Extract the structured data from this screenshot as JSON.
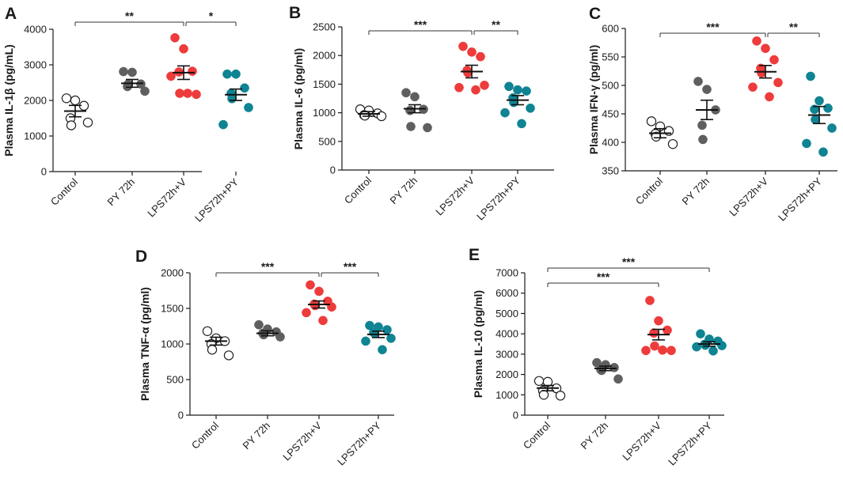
{
  "colors": {
    "control": "#ffffff",
    "py72h": "#5f5f5f",
    "lps_v": "#ee3b3b",
    "lps_py": "#0f8493",
    "axis": "#1a1a1a"
  },
  "chart_data": [
    {
      "panel": "A",
      "type": "scatter",
      "ylabel": "Plasma IL-1β (pg/mL)",
      "categories": [
        "Control",
        "PY 72h",
        "LPS72h+V",
        "LPS72h+PY"
      ],
      "ylim": [
        0,
        4000
      ],
      "yticks": [
        0,
        1000,
        2000,
        3000,
        4000
      ],
      "means": [
        1700,
        2480,
        2780,
        2160
      ],
      "sems": [
        160,
        110,
        190,
        160
      ],
      "points": [
        [
          2060,
          2000,
          1850,
          1500,
          1300,
          1380
        ],
        [
          2810,
          2790,
          2460,
          2390,
          2460,
          2260
        ],
        [
          3760,
          3450,
          2820,
          2800,
          2200,
          2170,
          2680,
          2200
        ],
        [
          2740,
          2740,
          2350,
          2200,
          2050,
          1800,
          1320
        ]
      ],
      "brackets": [
        {
          "from": 0,
          "to": 2,
          "label": "**"
        },
        {
          "from": 2,
          "to": 3,
          "label": "*"
        }
      ]
    },
    {
      "panel": "B",
      "type": "scatter",
      "ylabel": "Plasma IL-6 (pg/ml)",
      "categories": [
        "Control",
        "PY 72h",
        "LPS72h+V",
        "LPS72h+PY"
      ],
      "ylim": [
        0,
        2500
      ],
      "yticks": [
        0,
        500,
        1000,
        1500,
        2000,
        2500
      ],
      "means": [
        980,
        1070,
        1720,
        1220
      ],
      "sems": [
        40,
        70,
        110,
        80
      ],
      "points": [
        [
          1060,
          1040,
          990,
          960,
          950,
          940
        ],
        [
          1350,
          1280,
          1060,
          1040,
          760,
          740
        ],
        [
          2160,
          2060,
          1980,
          1740,
          1700,
          1480,
          1440,
          1400
        ],
        [
          1460,
          1400,
          1380,
          1260,
          1180,
          1080,
          1000,
          810
        ]
      ],
      "brackets": [
        {
          "from": 0,
          "to": 2,
          "label": "***"
        },
        {
          "from": 2,
          "to": 3,
          "label": "**"
        }
      ]
    },
    {
      "panel": "C",
      "type": "scatter",
      "ylabel": "Plasma IFN-γ (pg/ml)",
      "categories": [
        "Control",
        "PY 72h",
        "LPS72h+V",
        "LPS72h+PY"
      ],
      "ylim": [
        350,
        600
      ],
      "yticks": [
        350,
        400,
        450,
        500,
        550,
        600
      ],
      "means": [
        416,
        457,
        524,
        448
      ],
      "sems": [
        8,
        17,
        11,
        15
      ],
      "points": [
        [
          437,
          428,
          420,
          415,
          410,
          397
        ],
        [
          507,
          493,
          457,
          430,
          405
        ],
        [
          578,
          565,
          545,
          530,
          522,
          505,
          497,
          480
        ],
        [
          516,
          473,
          460,
          458,
          440,
          425,
          398,
          383
        ]
      ],
      "brackets": [
        {
          "from": 0,
          "to": 2,
          "label": "***"
        },
        {
          "from": 2,
          "to": 3,
          "label": "**"
        }
      ]
    },
    {
      "panel": "D",
      "type": "scatter",
      "ylabel": "Plasma TNF-α (pg/ml)",
      "categories": [
        "Control",
        "PY 72h",
        "LPS72h+V",
        "LPS72h+PY"
      ],
      "ylim": [
        0,
        2000
      ],
      "yticks": [
        0,
        500,
        1000,
        1500,
        2000
      ],
      "means": [
        1040,
        1150,
        1555,
        1135
      ],
      "sems": [
        55,
        35,
        50,
        45
      ],
      "points": [
        [
          1180,
          1080,
          1040,
          1000,
          920,
          840
        ],
        [
          1270,
          1210,
          1170,
          1150,
          1130,
          1100
        ],
        [
          1830,
          1740,
          1600,
          1560,
          1540,
          1520,
          1440,
          1330
        ],
        [
          1260,
          1240,
          1200,
          1160,
          1150,
          1080,
          1040,
          920
        ]
      ],
      "brackets": [
        {
          "from": 0,
          "to": 2,
          "label": "***"
        },
        {
          "from": 2,
          "to": 3,
          "label": "***"
        }
      ]
    },
    {
      "panel": "E",
      "type": "scatter",
      "ylabel": "Plasma IL-10 (pg/ml)",
      "categories": [
        "Control",
        "PY 72h",
        "LPS72h+V",
        "LPS72h+PY"
      ],
      "ylim": [
        0,
        7000
      ],
      "yticks": [
        0,
        1000,
        2000,
        3000,
        4000,
        5000,
        6000,
        7000
      ],
      "means": [
        1330,
        2300,
        3960,
        3500
      ],
      "sems": [
        130,
        110,
        260,
        110
      ],
      "points": [
        [
          1680,
          1640,
          1320,
          1200,
          1000,
          960
        ],
        [
          2580,
          2480,
          2340,
          2240,
          2200,
          1780
        ],
        [
          5640,
          4640,
          4180,
          4040,
          3400,
          3180,
          3180,
          3200
        ],
        [
          4000,
          3740,
          3640,
          3480,
          3440,
          3420,
          3360,
          3160
        ]
      ],
      "brackets": [
        {
          "from": 0,
          "to": 2,
          "label": "***"
        },
        {
          "from": 0,
          "to": 3,
          "label": "***"
        }
      ]
    }
  ]
}
